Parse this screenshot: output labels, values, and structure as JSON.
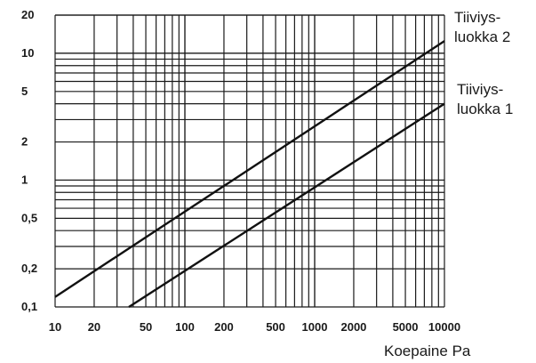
{
  "chart_data": {
    "type": "line",
    "title": "",
    "xlabel": "Koepaine Pa",
    "ylabel": "",
    "x_scale": "log",
    "y_scale": "log",
    "xlim": [
      10,
      10000
    ],
    "ylim": [
      0.1,
      20
    ],
    "grid": true,
    "x_tick_labels": [
      "10",
      "20",
      "50",
      "100",
      "200",
      "500",
      "1000",
      "2000",
      "5000",
      "10000"
    ],
    "x_tick_values": [
      10,
      20,
      50,
      100,
      200,
      500,
      1000,
      2000,
      5000,
      10000
    ],
    "y_tick_labels": [
      "0,1",
      "0,2",
      "0,5",
      "1",
      "2",
      "5",
      "10",
      "20"
    ],
    "y_tick_values": [
      0.1,
      0.2,
      0.5,
      1,
      2,
      5,
      10,
      20
    ],
    "series": [
      {
        "name": "Tiiviys-luokka 2",
        "label_lines": [
          "Tiiviys-",
          "luokka 2"
        ],
        "x": [
          10,
          10000
        ],
        "y": [
          0.12,
          12.5
        ]
      },
      {
        "name": "Tiiviys-luokka 1",
        "label_lines": [
          "Tiiviys-",
          "luokka 1"
        ],
        "x": [
          37,
          10000
        ],
        "y": [
          0.1,
          4.0
        ]
      }
    ]
  }
}
